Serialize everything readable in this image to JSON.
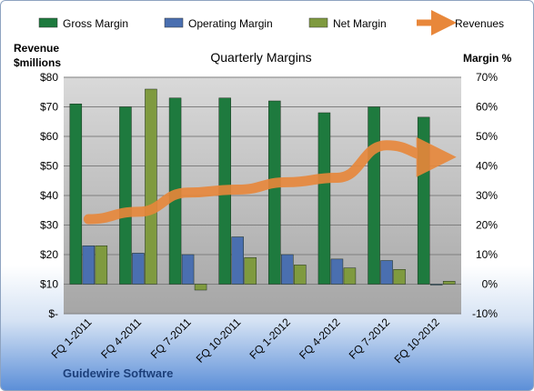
{
  "chart_data": {
    "type": "bar",
    "title": "Quarterly Margins",
    "company": "Guidewire Software",
    "categories": [
      "FQ 1-2011",
      "FQ 4-2011",
      "FQ 7-2011",
      "FQ 10-2011",
      "FQ 1-2012",
      "FQ 4-2012",
      "FQ 7-2012",
      "FQ 10-2012"
    ],
    "left_axis": {
      "label_line1": "Revenue",
      "label_line2": "$millions",
      "ticks": [
        "$-",
        "$10",
        "$20",
        "$30",
        "$40",
        "$50",
        "$60",
        "$70",
        "$80"
      ],
      "ylim": [
        0,
        80
      ]
    },
    "right_axis": {
      "label": "Margin %",
      "ticks": [
        "-10%",
        "0%",
        "10%",
        "20%",
        "30%",
        "40%",
        "50%",
        "60%",
        "70%"
      ],
      "ylim": [
        -10,
        70
      ]
    },
    "series": [
      {
        "name": "Gross Margin",
        "axis": "right",
        "type": "bar",
        "color": "#1e7a3e",
        "values": [
          61,
          60,
          63,
          63,
          62,
          58,
          60,
          56.5
        ]
      },
      {
        "name": "Operating Margin",
        "axis": "right",
        "type": "bar",
        "color": "#4a6fb0",
        "values": [
          13,
          10.5,
          10,
          16,
          10,
          8.5,
          8,
          -0.3
        ]
      },
      {
        "name": "Net Margin",
        "axis": "right",
        "type": "bar",
        "color": "#7f9a3f",
        "values": [
          13,
          66,
          -2,
          9,
          6.5,
          5.5,
          5,
          1
        ]
      },
      {
        "name": "Revenues",
        "axis": "left",
        "type": "line",
        "color": "#e8873a",
        "values": [
          32,
          34.5,
          41,
          42,
          44.5,
          46,
          57,
          53
        ]
      }
    ],
    "legend_position": "top",
    "grid": true
  }
}
